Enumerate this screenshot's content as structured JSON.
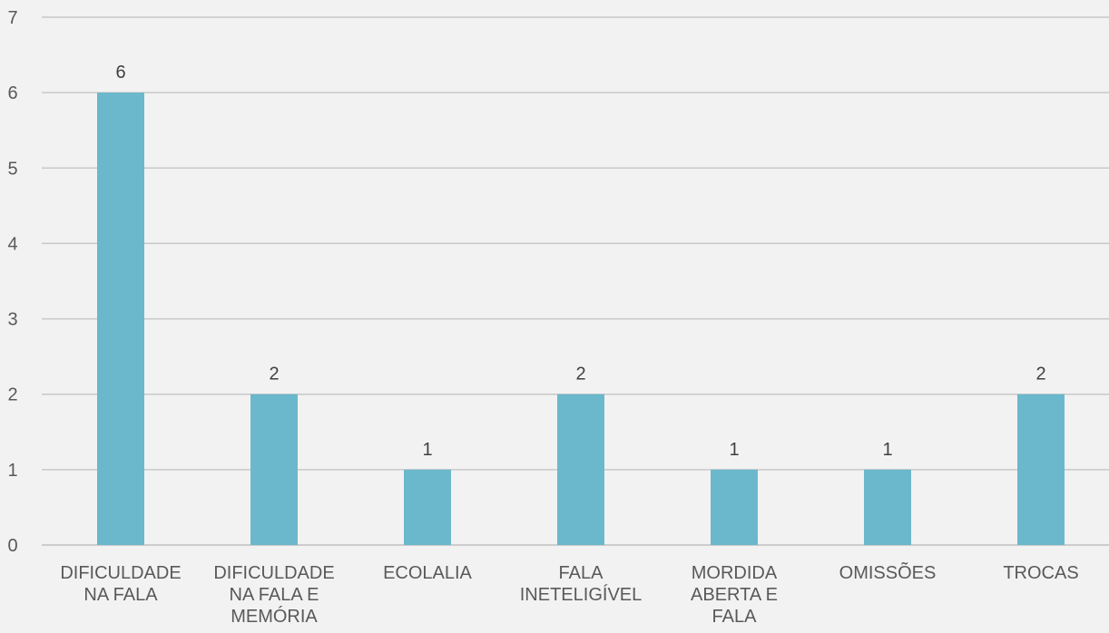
{
  "chart_data": {
    "type": "bar",
    "categories": [
      [
        "DIFICULDADE",
        "NA FALA"
      ],
      [
        "DIFICULDADE",
        "NA FALA E",
        "MEMÓRIA"
      ],
      [
        "ECOLALIA"
      ],
      [
        "FALA",
        "INETELIGÍVEL"
      ],
      [
        "MORDIDA",
        "ABERTA E",
        "FALA"
      ],
      [
        "OMISSÕES"
      ],
      [
        "TROCAS"
      ]
    ],
    "values": [
      6,
      2,
      1,
      2,
      1,
      1,
      2
    ],
    "data_labels": [
      "6",
      "2",
      "1",
      "2",
      "1",
      "1",
      "2"
    ],
    "ylim": [
      0,
      7
    ],
    "y_ticks": [
      "0",
      "1",
      "2",
      "3",
      "4",
      "5",
      "6",
      "7"
    ],
    "grid": true,
    "bar_color": "#6bb8cc",
    "title": "",
    "xlabel": "",
    "ylabel": ""
  }
}
